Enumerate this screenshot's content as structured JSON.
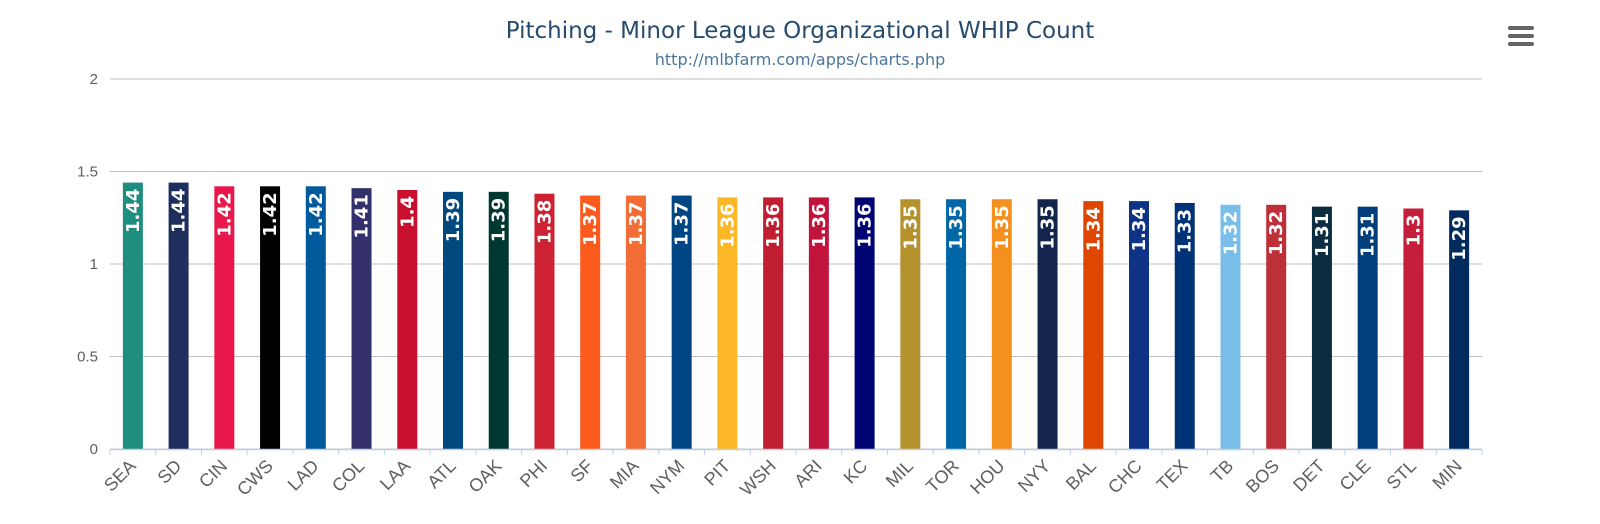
{
  "chart_data": {
    "type": "bar",
    "title": "Pitching - Minor League Organizational WHIP Count",
    "subtitle": "http://mlbfarm.com/apps/charts.php",
    "xlabel": "",
    "ylabel": "",
    "ylim": [
      0,
      2
    ],
    "yticks": [
      "0",
      "0.5",
      "1",
      "1.5",
      "2"
    ],
    "grid": true,
    "categories": [
      "SEA",
      "SD",
      "CIN",
      "CWS",
      "LAD",
      "COL",
      "LAA",
      "ATL",
      "OAK",
      "PHI",
      "SF",
      "MIA",
      "NYM",
      "PIT",
      "WSH",
      "ARI",
      "KC",
      "MIL",
      "TOR",
      "HOU",
      "NYY",
      "BAL",
      "CHC",
      "TEX",
      "TB",
      "BOS",
      "DET",
      "CLE",
      "STL",
      "MIN"
    ],
    "values": [
      1.44,
      1.44,
      1.42,
      1.42,
      1.42,
      1.41,
      1.4,
      1.39,
      1.39,
      1.38,
      1.37,
      1.37,
      1.37,
      1.36,
      1.36,
      1.36,
      1.36,
      1.35,
      1.35,
      1.35,
      1.35,
      1.34,
      1.34,
      1.33,
      1.32,
      1.32,
      1.31,
      1.31,
      1.3,
      1.29
    ],
    "data_labels": [
      "1.44",
      "1.44",
      "1.42",
      "1.42",
      "1.42",
      "1.41",
      "1.4",
      "1.39",
      "1.39",
      "1.38",
      "1.37",
      "1.37",
      "1.37",
      "1.36",
      "1.36",
      "1.36",
      "1.36",
      "1.35",
      "1.35",
      "1.35",
      "1.35",
      "1.34",
      "1.34",
      "1.33",
      "1.32",
      "1.32",
      "1.31",
      "1.31",
      "1.3",
      "1.29"
    ],
    "colors": [
      "#1f8e7f",
      "#1e2f5e",
      "#e8184d",
      "#000000",
      "#005a9c",
      "#33306b",
      "#c8102e",
      "#00497e",
      "#003831",
      "#cc2233",
      "#fd5a1e",
      "#f26c36",
      "#004685",
      "#fdb827",
      "#c01f32",
      "#c0143c",
      "#000473",
      "#b6922e",
      "#0067a6",
      "#f4911e",
      "#13254c",
      "#df4601",
      "#0e3386",
      "#003278",
      "#79bde9",
      "#bd3039",
      "#0c2c40",
      "#003f7a",
      "#c41e3a",
      "#002b5c"
    ]
  },
  "toolbar": {
    "menu_icon": "hamburger-menu-icon"
  }
}
